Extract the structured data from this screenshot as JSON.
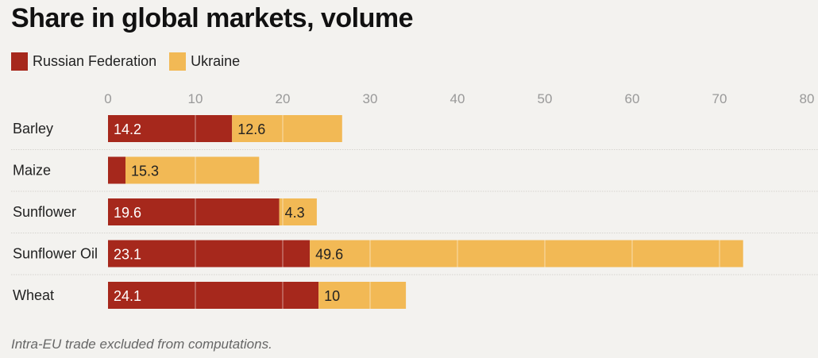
{
  "chart_data": {
    "type": "bar",
    "orientation": "horizontal",
    "stacked": true,
    "title": "Share in global markets, volume",
    "xlabel": "",
    "ylabel": "",
    "xlim": [
      0,
      80
    ],
    "xticks": [
      "0",
      "10",
      "20",
      "30",
      "40",
      "50",
      "60",
      "70",
      "80"
    ],
    "grid": true,
    "legend_position": "top-left",
    "categories": [
      "Barley",
      "Maize",
      "Sunflower",
      "Sunflower Oil",
      "Wheat"
    ],
    "series": [
      {
        "name": "Russian Federation",
        "color": "#a6281c",
        "values": [
          14.2,
          2.0,
          19.6,
          23.1,
          24.1
        ],
        "labels": [
          "14.2",
          "",
          "19.6",
          "23.1",
          "24.1"
        ]
      },
      {
        "name": "Ukraine",
        "color": "#f2b955",
        "values": [
          12.6,
          15.3,
          4.3,
          49.6,
          10
        ],
        "labels": [
          "12.6",
          "15.3",
          "4.3",
          "49.6",
          "10"
        ]
      }
    ],
    "footnote": "Intra-EU trade excluded from computations."
  }
}
